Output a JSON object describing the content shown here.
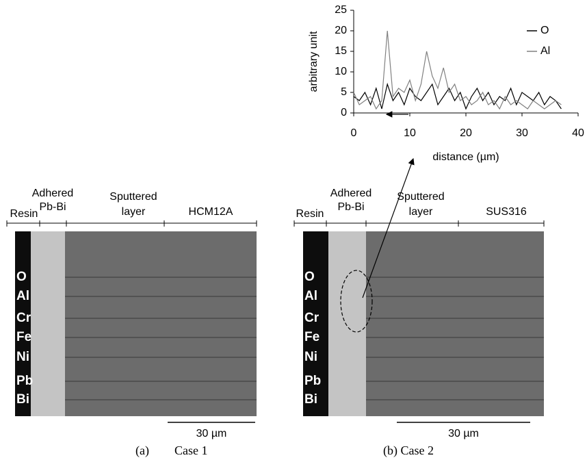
{
  "chart_data": {
    "type": "line",
    "xlabel": "distance (µm)",
    "ylabel": "arbitrary unit",
    "x": [
      0,
      1,
      2,
      3,
      4,
      5,
      6,
      7,
      8,
      9,
      10,
      11,
      12,
      13,
      14,
      15,
      16,
      17,
      18,
      19,
      20,
      21,
      22,
      23,
      24,
      25,
      26,
      27,
      28,
      29,
      30,
      31,
      32,
      33,
      34,
      35,
      36,
      37
    ],
    "series": [
      {
        "name": "O",
        "color": "#000000",
        "values": [
          4,
          3,
          5,
          2,
          6,
          1,
          7,
          3,
          5,
          2,
          6,
          4,
          3,
          5,
          7,
          2,
          4,
          6,
          3,
          5,
          1,
          4,
          6,
          3,
          5,
          2,
          4,
          3,
          6,
          2,
          5,
          4,
          3,
          5,
          2,
          4,
          3,
          1
        ]
      },
      {
        "name": "Al",
        "color": "#808080",
        "values": [
          5,
          2,
          3,
          4,
          1,
          3,
          20,
          4,
          6,
          5,
          8,
          3,
          7,
          15,
          9,
          6,
          11,
          5,
          7,
          3,
          4,
          2,
          3,
          5,
          2,
          3,
          1,
          4,
          2,
          3,
          2,
          1,
          3,
          2,
          1,
          2,
          3,
          2
        ]
      }
    ],
    "xlim": [
      0,
      40
    ],
    "xticks": [
      0,
      10,
      20,
      30,
      40
    ],
    "ylim": [
      0,
      25
    ],
    "yticks": [
      0,
      5,
      10,
      15,
      20,
      25
    ],
    "legend": "upper right"
  },
  "panels": [
    {
      "resin": "Resin",
      "adhered": [
        "Adhered",
        "Pb-Bi"
      ],
      "sputtered": [
        "Sputtered",
        "layer"
      ],
      "substrate": "HCM12A",
      "elements": [
        "O",
        "Al",
        "Cr",
        "Fe",
        "Ni",
        "Pb",
        "Bi"
      ],
      "scale_bar": "30 µm",
      "caption": [
        "(a)",
        "Case 1"
      ]
    },
    {
      "resin": "Resin",
      "adhered": [
        "Adhered",
        "Pb-Bi"
      ],
      "sputtered": [
        "Sputtered",
        "layer"
      ],
      "substrate": "SUS316",
      "elements": [
        "O",
        "Al",
        "Cr",
        "Fe",
        "Ni",
        "Pb",
        "Bi"
      ],
      "scale_bar": "30 µm",
      "caption": [
        "(b) Case 2"
      ]
    }
  ]
}
